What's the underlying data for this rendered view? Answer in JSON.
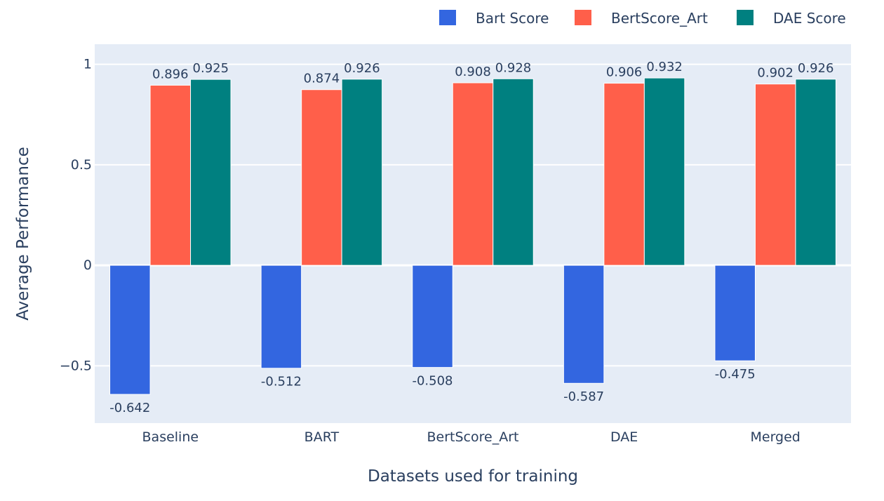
{
  "chart_data": {
    "type": "bar",
    "title": "",
    "xlabel": "Datasets used for training",
    "ylabel": "Average Performance",
    "categories": [
      "Baseline",
      "BART",
      "BertScore_Art",
      "DAE",
      "Merged"
    ],
    "series": [
      {
        "name": "Bart Score",
        "color": "#3366e0",
        "values": [
          -0.642,
          -0.512,
          -0.508,
          -0.587,
          -0.475
        ],
        "labels": [
          "-0.642",
          "-0.512",
          "-0.508",
          "-0.587",
          "-0.475"
        ]
      },
      {
        "name": "BertScore_Art",
        "color": "#ff5f4a",
        "values": [
          0.896,
          0.874,
          0.908,
          0.906,
          0.902
        ],
        "labels": [
          "0.896",
          "0.874",
          "0.908",
          "0.906",
          "0.902"
        ]
      },
      {
        "name": "DAE Score",
        "color": "#008080",
        "values": [
          0.925,
          0.926,
          0.928,
          0.932,
          0.926
        ],
        "labels": [
          "0.925",
          "0.926",
          "0.928",
          "0.932",
          "0.926"
        ]
      }
    ],
    "ylim": [
      -0.785,
      1.1
    ],
    "yticks": [
      {
        "value": -0.5,
        "label": "−0.5"
      },
      {
        "value": 0,
        "label": "0"
      },
      {
        "value": 0.5,
        "label": "0.5"
      },
      {
        "value": 1,
        "label": "1"
      }
    ],
    "grid": true,
    "legend_position": "top-right",
    "plot_background": "#e5ecf6"
  }
}
